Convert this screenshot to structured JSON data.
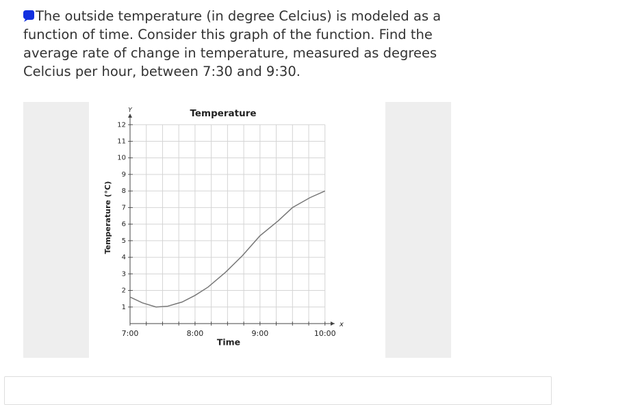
{
  "question": "The outside temperature (in degree Celcius) is modeled as a function of time. Consider this graph of the function. Find the average rate of change in temperature, measured as degrees Celcius per hour, between 7:30 and 9:30.",
  "chart_data": {
    "type": "line",
    "title": "Temperature",
    "x_label": "Time",
    "y_label": "Temperature (°C)",
    "x_axis_symbol": "x",
    "y_axis_symbol": "Y",
    "x": [
      7,
      7.19,
      7.4,
      7.58,
      7.8,
      8.0,
      8.2,
      8.47,
      8.73,
      9.0,
      9.28,
      9.5,
      9.77,
      10.0
    ],
    "series": [
      {
        "name": "Temperature",
        "color": "#777777",
        "values": [
          1.6,
          1.25,
          1.0,
          1.05,
          1.3,
          1.7,
          2.2,
          3.1,
          4.1,
          5.3,
          6.2,
          7.0,
          7.6,
          8.0
        ]
      }
    ],
    "xlim": [
      7,
      10.15
    ],
    "ylim": [
      0,
      12.3
    ],
    "xticks": [
      {
        "value": 7,
        "label": "7:00"
      },
      {
        "value": 8,
        "label": "8:00"
      },
      {
        "value": 9,
        "label": "9:00"
      },
      {
        "value": 10,
        "label": "10:00"
      }
    ],
    "x_minor_ticks": [
      7.25,
      7.5,
      7.75,
      8.25,
      8.5,
      8.75,
      9.25,
      9.5,
      9.75
    ],
    "yticks": [
      1,
      2,
      3,
      4,
      5,
      6,
      7,
      8,
      9,
      10,
      11,
      12
    ],
    "grid": true
  }
}
